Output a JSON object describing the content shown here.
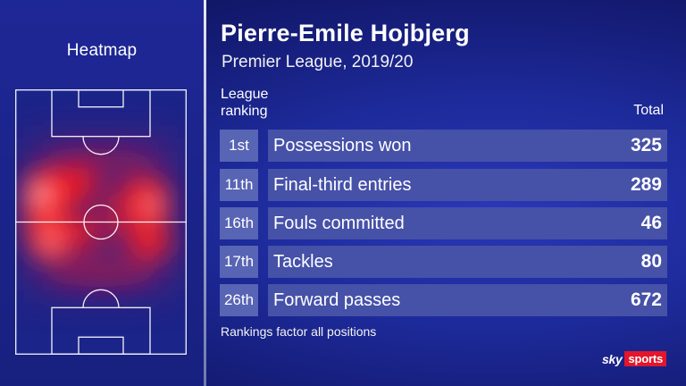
{
  "heatmap": {
    "title": "Heatmap"
  },
  "header": {
    "title": "Pierre-Emile Hojbjerg",
    "subtitle": "Premier League, 2019/20"
  },
  "columns": {
    "ranking": "League ranking",
    "total": "Total"
  },
  "rows": [
    {
      "rank": "1st",
      "label": "Possessions won",
      "value": "325"
    },
    {
      "rank": "11th",
      "label": "Final-third entries",
      "value": "289"
    },
    {
      "rank": "16th",
      "label": "Fouls committed",
      "value": "46"
    },
    {
      "rank": "17th",
      "label": "Tackles",
      "value": "80"
    },
    {
      "rank": "26th",
      "label": "Forward passes",
      "value": "672"
    }
  ],
  "footnote": "Rankings factor all positions",
  "brand": {
    "sky": "sky",
    "sports": "sports",
    "accent": "#e3162c"
  },
  "colors": {
    "background": "#1d2a9a",
    "rank_box": "#5864b4",
    "stat_box": "#4651a8",
    "heat": "#ff1a1a"
  }
}
